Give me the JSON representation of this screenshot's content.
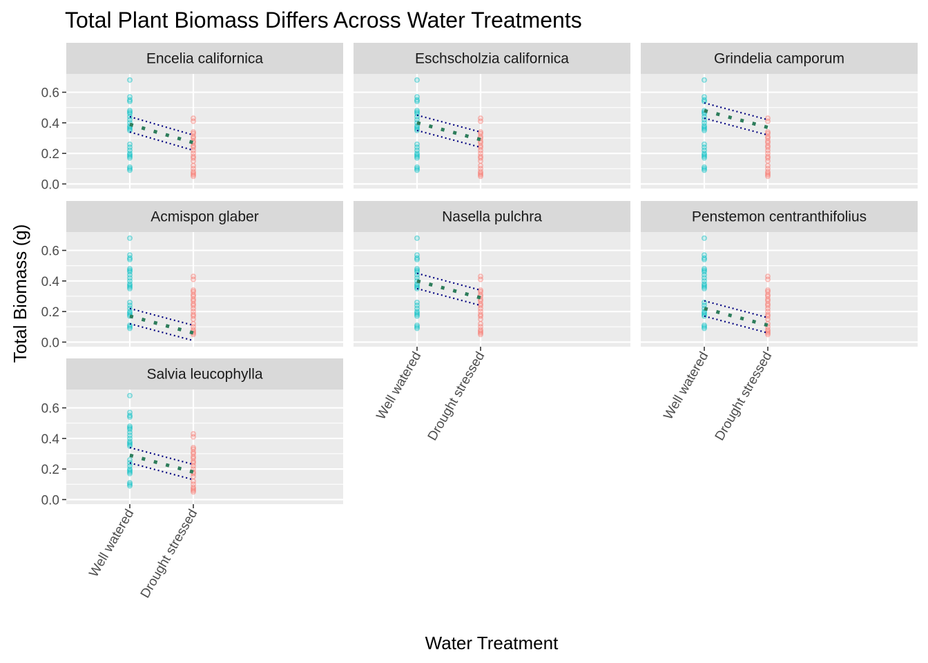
{
  "chart_data": {
    "type": "scatter",
    "title": "Total Plant Biomass Differs Across Water Treatments",
    "xlabel": "Water Treatment",
    "ylabel": "Total Biomass (g)",
    "categories": [
      "Well watered",
      "Drought stressed"
    ],
    "ylim": [
      -0.03,
      0.72
    ],
    "yticks": [
      0.0,
      0.2,
      0.4,
      0.6
    ],
    "ytick_labels": [
      "0.0",
      "0.2",
      "0.4",
      "0.6"
    ],
    "grid": true,
    "legend": "none",
    "colors": {
      "well_watered": "#00BFC4",
      "drought_stressed": "#F8766D",
      "fit_line": "#2E7D5B",
      "ci_line": "#000080",
      "panel_bg": "#EBEBEB",
      "strip_bg": "#D9D9D9",
      "grid": "#FFFFFF"
    },
    "raw_points": {
      "Well watered": [
        0.68,
        0.57,
        0.55,
        0.54,
        0.48,
        0.47,
        0.46,
        0.44,
        0.42,
        0.4,
        0.38,
        0.37,
        0.36,
        0.35,
        0.26,
        0.24,
        0.22,
        0.2,
        0.19,
        0.18,
        0.17,
        0.11,
        0.1,
        0.09
      ],
      "Drought stressed": [
        0.43,
        0.41,
        0.34,
        0.33,
        0.31,
        0.3,
        0.28,
        0.27,
        0.25,
        0.24,
        0.22,
        0.2,
        0.18,
        0.17,
        0.15,
        0.12,
        0.1,
        0.08,
        0.07,
        0.06,
        0.05
      ]
    },
    "panels": [
      {
        "species": "Encelia californica",
        "fit": [
          0.39,
          0.27
        ],
        "ci_upper": [
          0.44,
          0.32
        ],
        "ci_lower": [
          0.34,
          0.22
        ]
      },
      {
        "species": "Eschscholzia californica",
        "fit": [
          0.4,
          0.29
        ],
        "ci_upper": [
          0.45,
          0.34
        ],
        "ci_lower": [
          0.35,
          0.24
        ]
      },
      {
        "species": "Grindelia camporum",
        "fit": [
          0.48,
          0.37
        ],
        "ci_upper": [
          0.53,
          0.42
        ],
        "ci_lower": [
          0.43,
          0.32
        ]
      },
      {
        "species": "Acmispon glaber",
        "fit": [
          0.17,
          0.06
        ],
        "ci_upper": [
          0.22,
          0.11
        ],
        "ci_lower": [
          0.12,
          0.01
        ]
      },
      {
        "species": "Nasella pulchra",
        "fit": [
          0.4,
          0.29
        ],
        "ci_upper": [
          0.45,
          0.34
        ],
        "ci_lower": [
          0.35,
          0.24
        ]
      },
      {
        "species": "Penstemon centranthifolius",
        "fit": [
          0.22,
          0.11
        ],
        "ci_upper": [
          0.27,
          0.16
        ],
        "ci_lower": [
          0.17,
          0.06
        ]
      },
      {
        "species": "Salvia leucophylla",
        "fit": [
          0.29,
          0.18
        ],
        "ci_upper": [
          0.34,
          0.23
        ],
        "ci_lower": [
          0.24,
          0.13
        ]
      }
    ]
  }
}
